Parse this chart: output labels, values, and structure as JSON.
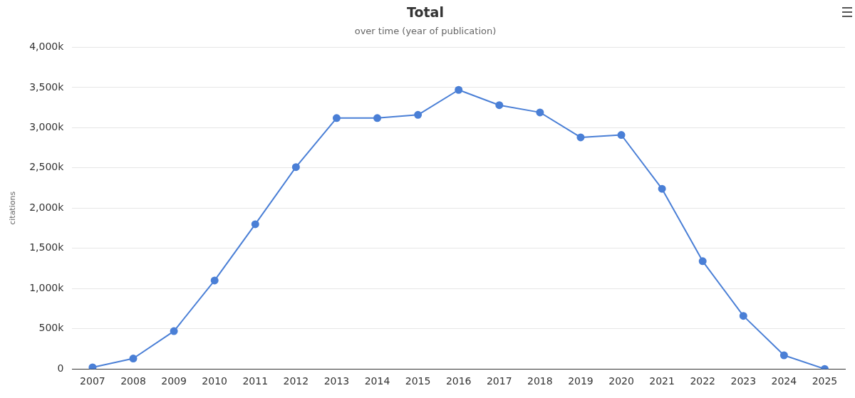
{
  "chart_data": {
    "type": "line",
    "title": "Total",
    "subtitle": "over time (year of publication)",
    "ylabel": "citations",
    "categories": [
      "2007",
      "2008",
      "2009",
      "2010",
      "2011",
      "2012",
      "2013",
      "2014",
      "2015",
      "2016",
      "2017",
      "2018",
      "2019",
      "2020",
      "2021",
      "2022",
      "2023",
      "2024",
      "2025"
    ],
    "series": [
      {
        "color": "#4a7fd6",
        "values": [
          20,
          130,
          470,
          1100,
          1800,
          2510,
          3120,
          3120,
          3160,
          3470,
          3280,
          3190,
          2880,
          2910,
          2240,
          1340,
          660,
          170,
          0
        ]
      }
    ],
    "ylim": [
      0,
      4000
    ],
    "yticks": [
      {
        "value": 0,
        "label": "0"
      },
      {
        "value": 500,
        "label": "500k"
      },
      {
        "value": 1000,
        "label": "1,000k"
      },
      {
        "value": 1500,
        "label": "1,500k"
      },
      {
        "value": 2000,
        "label": "2,000k"
      },
      {
        "value": 2500,
        "label": "2,500k"
      },
      {
        "value": 3000,
        "label": "3,000k"
      },
      {
        "value": 3500,
        "label": "3,500k"
      },
      {
        "value": 4000,
        "label": "4,000k"
      }
    ],
    "grid": "y",
    "legend": false,
    "marker": "circle",
    "line_style": "solid"
  }
}
